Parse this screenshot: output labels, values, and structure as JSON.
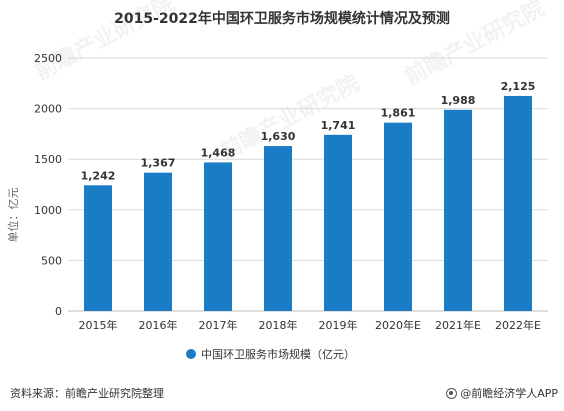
{
  "chart_data": {
    "type": "bar",
    "title": "2015-2022年中国环卫服务市场规模统计情况及预测",
    "ylabel": "单位：亿元",
    "xlabel": "",
    "categories": [
      "2015年",
      "2016年",
      "2017年",
      "2018年",
      "2019年",
      "2020年E",
      "2021年E",
      "2022年E"
    ],
    "series": [
      {
        "name": "中国环卫服务市场规模（亿元）",
        "values": [
          1242,
          1367,
          1468,
          1630,
          1741,
          1861,
          1988,
          2125
        ],
        "data_labels": [
          "1,242",
          "1,367",
          "1,468",
          "1,630",
          "1,741",
          "1,861",
          "1,988",
          "2,125"
        ]
      }
    ],
    "ylim": [
      0,
      2500
    ],
    "yticks": [
      0,
      500,
      1000,
      1500,
      2000,
      2500
    ],
    "ytick_labels": [
      "0",
      "500",
      "1000",
      "1500",
      "2000",
      "2500"
    ],
    "grid": true,
    "legend_position": "bottom-center",
    "colors": {
      "bar": "#1a7cc4",
      "grid": "#d9d9d9",
      "axis": "#bfbfbf"
    }
  },
  "footer": {
    "source": "资料来源：前瞻产业研究院整理",
    "brand": "@前瞻经济学人APP",
    "brand_icon": "brand-logo-icon"
  },
  "watermarks": [
    "前瞻产业研究院",
    "前瞻产业研究院",
    "前瞻产业研究院"
  ]
}
